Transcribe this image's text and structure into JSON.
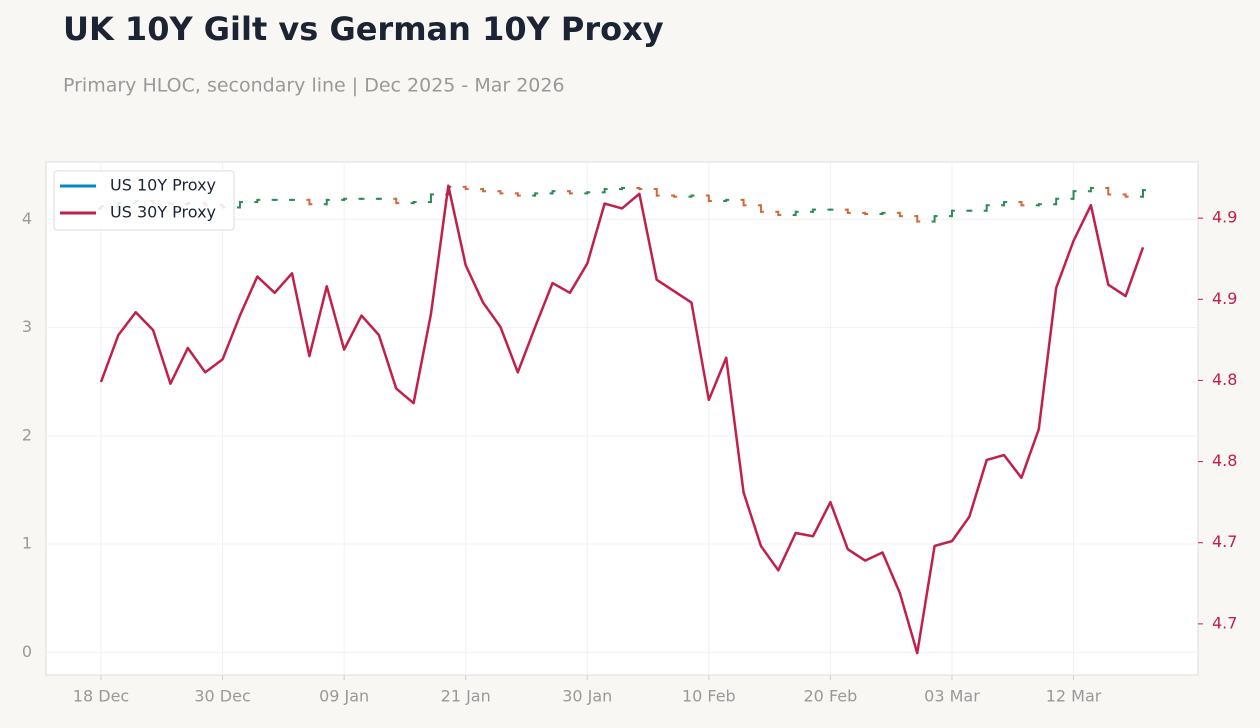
{
  "chart_data": {
    "type": "ohlc",
    "title": "UK 10Y Gilt vs German 10Y Proxy",
    "subtitle": "Primary HLOC, secondary line | Dec 2025 - Mar 2026",
    "categories": [
      "18 Dec",
      null,
      null,
      null,
      null,
      null,
      null,
      "30 Dec",
      null,
      null,
      null,
      null,
      null,
      null,
      "09 Jan",
      null,
      null,
      null,
      null,
      null,
      null,
      "21 Jan",
      null,
      null,
      null,
      null,
      null,
      null,
      "30 Jan",
      null,
      null,
      null,
      null,
      null,
      null,
      "10 Feb",
      null,
      null,
      null,
      null,
      null,
      null,
      "20 Feb",
      null,
      null,
      null,
      null,
      null,
      null,
      "03 Mar",
      null,
      null,
      null,
      null,
      null,
      null,
      "12 Mar",
      null,
      null,
      null,
      null
    ],
    "ylim": [
      -0.21,
      4.53
    ],
    "yticks": [
      0,
      1,
      2,
      3,
      4
    ],
    "y2lim": [
      4.6185,
      4.9346
    ],
    "y2ticks": [
      {
        "value": 4.65,
        "label": "4.7"
      },
      {
        "value": 4.7,
        "label": "4.7"
      },
      {
        "value": 4.75,
        "label": "4.8"
      },
      {
        "value": 4.8,
        "label": "4.8"
      },
      {
        "value": 4.85,
        "label": "4.9"
      },
      {
        "value": 4.9,
        "label": "4.9"
      }
    ],
    "grid": true,
    "legend": "upper left",
    "up_color": "#2e8b57",
    "down_color": "#d2693c",
    "y2_color": "#c0204a",
    "series": [
      {
        "name": "US 10Y Proxy",
        "color": "#0a84c6",
        "type": "ohlc",
        "open": [
          4.1,
          4.12,
          4.15,
          4.17,
          4.15,
          4.14,
          4.15,
          4.13,
          4.11,
          4.16,
          4.18,
          4.18,
          4.18,
          4.14,
          4.18,
          4.19,
          4.19,
          4.19,
          4.15,
          4.16,
          4.23,
          4.3,
          4.28,
          4.26,
          4.24,
          4.22,
          4.24,
          4.26,
          4.24,
          4.25,
          4.28,
          4.29,
          4.28,
          4.22,
          4.21,
          4.22,
          4.17,
          4.18,
          4.13,
          4.07,
          4.04,
          4.07,
          4.09,
          4.09,
          4.06,
          4.05,
          4.06,
          4.03,
          3.98,
          4.03,
          4.08,
          4.08,
          4.13,
          4.16,
          4.13,
          4.14,
          4.19,
          4.26,
          4.29,
          4.23,
          4.21
        ],
        "high": [
          4.13,
          4.16,
          4.18,
          4.18,
          4.16,
          4.16,
          4.16,
          4.14,
          4.17,
          4.19,
          4.19,
          4.19,
          4.19,
          4.19,
          4.2,
          4.2,
          4.2,
          4.2,
          4.17,
          4.24,
          4.31,
          4.31,
          4.29,
          4.27,
          4.25,
          4.25,
          4.27,
          4.27,
          4.26,
          4.29,
          4.3,
          4.3,
          4.29,
          4.23,
          4.23,
          4.23,
          4.19,
          4.19,
          4.14,
          4.08,
          4.08,
          4.1,
          4.1,
          4.1,
          4.07,
          4.07,
          4.07,
          4.04,
          4.04,
          4.09,
          4.09,
          4.14,
          4.17,
          4.17,
          4.15,
          4.2,
          4.27,
          4.3,
          4.3,
          4.24,
          4.28
        ],
        "low": [
          4.09,
          4.11,
          4.14,
          4.14,
          4.13,
          4.13,
          4.12,
          4.1,
          4.1,
          4.15,
          4.17,
          4.17,
          4.13,
          4.13,
          4.17,
          4.18,
          4.18,
          4.14,
          4.14,
          4.15,
          4.22,
          4.27,
          4.25,
          4.23,
          4.21,
          4.21,
          4.23,
          4.23,
          4.23,
          4.24,
          4.27,
          4.27,
          4.21,
          4.2,
          4.2,
          4.16,
          4.16,
          4.12,
          4.06,
          4.03,
          4.03,
          4.06,
          4.08,
          4.05,
          4.04,
          4.04,
          4.02,
          3.97,
          3.97,
          4.02,
          4.07,
          4.07,
          4.12,
          4.12,
          4.12,
          4.13,
          4.18,
          4.25,
          4.22,
          4.2,
          4.2
        ],
        "close": [
          4.12,
          4.15,
          4.17,
          4.15,
          4.14,
          4.15,
          4.13,
          4.11,
          4.16,
          4.18,
          4.18,
          4.18,
          4.14,
          4.18,
          4.19,
          4.19,
          4.19,
          4.15,
          4.16,
          4.23,
          4.3,
          4.28,
          4.26,
          4.24,
          4.22,
          4.24,
          4.26,
          4.24,
          4.25,
          4.28,
          4.29,
          4.28,
          4.22,
          4.21,
          4.22,
          4.17,
          4.18,
          4.13,
          4.07,
          4.04,
          4.07,
          4.09,
          4.09,
          4.06,
          4.05,
          4.06,
          4.03,
          3.98,
          4.03,
          4.08,
          4.08,
          4.13,
          4.16,
          4.13,
          4.14,
          4.19,
          4.26,
          4.29,
          4.23,
          4.21,
          4.27
        ]
      },
      {
        "name": "US 30Y Proxy",
        "color": "#c0204a",
        "type": "line",
        "axis": "y2",
        "values": [
          4.799,
          4.828,
          4.842,
          4.831,
          4.798,
          4.82,
          4.805,
          4.813,
          4.84,
          4.864,
          4.854,
          4.866,
          4.815,
          4.858,
          4.819,
          4.84,
          4.828,
          4.795,
          4.786,
          4.841,
          4.92,
          4.871,
          4.848,
          4.833,
          4.805,
          4.833,
          4.86,
          4.854,
          4.872,
          4.909,
          4.906,
          4.915,
          4.862,
          4.855,
          4.848,
          4.788,
          4.814,
          4.731,
          4.698,
          4.683,
          4.706,
          4.704,
          4.725,
          4.696,
          4.689,
          4.694,
          4.669,
          4.632,
          4.698,
          4.701,
          4.716,
          4.751,
          4.754,
          4.74,
          4.77,
          4.857,
          4.886,
          4.908,
          4.859,
          4.852,
          4.882
        ]
      }
    ]
  }
}
